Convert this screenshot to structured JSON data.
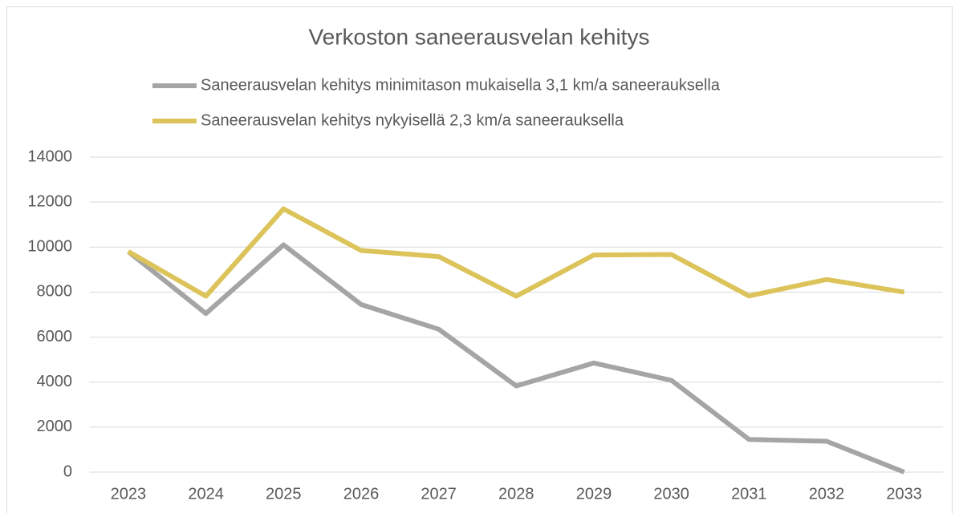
{
  "chart_data": {
    "type": "line",
    "title": "Verkoston saneerausvelan kehitys",
    "categories": [
      "2023",
      "2024",
      "2025",
      "2026",
      "2027",
      "2028",
      "2029",
      "2030",
      "2031",
      "2032",
      "2033"
    ],
    "series": [
      {
        "name": "Saneerausvelan kehitys minimitason mukaisella 3,1 km/a saneerauksella",
        "color": "#a5a5a5",
        "values": [
          9800,
          7050,
          10100,
          7450,
          6350,
          3830,
          4850,
          4080,
          1450,
          1370,
          0
        ]
      },
      {
        "name": "Saneerausvelan kehitys nykyisellä 2,3 km/a saneerauksella",
        "color": "#dcc35a",
        "values": [
          9800,
          7820,
          11700,
          9850,
          9580,
          7820,
          9650,
          9670,
          7830,
          8560,
          8000
        ]
      }
    ],
    "ylim": [
      0,
      14000
    ],
    "yticks": [
      0,
      2000,
      4000,
      6000,
      8000,
      10000,
      12000,
      14000
    ],
    "grid": true
  }
}
